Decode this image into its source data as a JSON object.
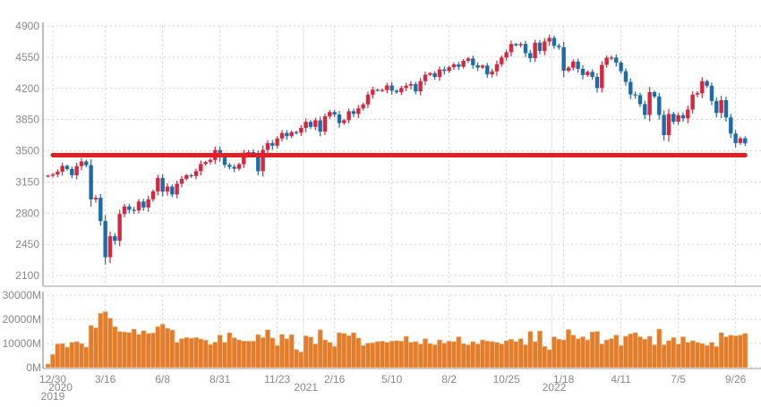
{
  "chart_data": {
    "type": "candlestick",
    "title": "",
    "colors": {
      "up": "#d7263d",
      "down": "#1b6ca8",
      "volume": "#e27d2b",
      "volume_edge": "#f6c9a0",
      "level_line": "#e31e24",
      "grid": "#d4d4d4",
      "axis": "#bdbdbd",
      "text": "#888888"
    },
    "price_axis": {
      "ylim": [
        2100,
        4900
      ],
      "ticks": [
        "2100",
        "2450",
        "2800",
        "3150",
        "3500",
        "3850",
        "4200",
        "4550",
        "4900"
      ]
    },
    "volume_axis": {
      "ylim": [
        0,
        30000
      ],
      "ticks": [
        "0M",
        "10000M",
        "20000M",
        "30000M"
      ]
    },
    "x_ticks": [
      {
        "label": "12/30",
        "week": 1
      },
      {
        "label": "3/16",
        "week": 12
      },
      {
        "label": "6/8",
        "week": 24
      },
      {
        "label": "8/31",
        "week": 36
      },
      {
        "label": "11/23",
        "week": 48
      },
      {
        "label": "2/16",
        "week": 60
      },
      {
        "label": "5/10",
        "week": 72
      },
      {
        "label": "8/2",
        "week": 84
      },
      {
        "label": "10/25",
        "week": 96
      },
      {
        "label": "1/18",
        "week": 108
      },
      {
        "label": "4/11",
        "week": 120
      },
      {
        "label": "7/5",
        "week": 132
      },
      {
        "label": "9/26",
        "week": 144
      }
    ],
    "year_labels": [
      {
        "label": "2019",
        "week": 1
      },
      {
        "label": "2020",
        "week": 2.6
      },
      {
        "label": "2021",
        "week": 54
      },
      {
        "label": "2022",
        "week": 106
      }
    ],
    "year_dividers": [
      53.5,
      105.5
    ],
    "level_line": {
      "value": 3450,
      "from_week": 1,
      "to_week": 146
    },
    "first_week": "2019-12-23",
    "interval": "weekly",
    "close": [
      3221,
      3235,
      3265,
      3330,
      3295,
      3225,
      3328,
      3380,
      3338,
      2954,
      2972,
      2711,
      2305,
      2541,
      2489,
      2790,
      2875,
      2837,
      2831,
      2930,
      2864,
      2955,
      3044,
      3194,
      3041,
      3098,
      3009,
      3130,
      3185,
      3225,
      3216,
      3271,
      3351,
      3373,
      3397,
      3508,
      3427,
      3341,
      3319,
      3298,
      3348,
      3477,
      3484,
      3465,
      3270,
      3510,
      3585,
      3557,
      3638,
      3699,
      3663,
      3709,
      3703,
      3756,
      3824,
      3768,
      3841,
      3714,
      3886,
      3934,
      3906,
      3811,
      3842,
      3943,
      3913,
      3975,
      4020,
      4129,
      4185,
      4180,
      4181,
      4232,
      4174,
      4156,
      4204,
      4230,
      4247,
      4166,
      4281,
      4352,
      4370,
      4327,
      4412,
      4395,
      4437,
      4468,
      4442,
      4509,
      4535,
      4459,
      4433,
      4455,
      4357,
      4391,
      4471,
      4545,
      4605,
      4697,
      4683,
      4698,
      4595,
      4538,
      4712,
      4620,
      4725,
      4766,
      4677,
      4662,
      4398,
      4432,
      4500,
      4419,
      4349,
      4385,
      4329,
      4204,
      4463,
      4543,
      4546,
      4488,
      4392,
      4272,
      4132,
      4123,
      4023,
      3901,
      4158,
      4108,
      3901,
      3675,
      3912,
      3825,
      3899,
      3863,
      3962,
      4130,
      4145,
      4280,
      4228,
      4058,
      3924,
      4067,
      3873,
      3693,
      3586,
      3639,
      3583
    ],
    "first_open": 3215,
    "volume_millions": [
      1500,
      5500,
      9800,
      10000,
      8500,
      10500,
      10800,
      10000,
      8500,
      17500,
      16500,
      22500,
      23200,
      20500,
      17000,
      15000,
      14800,
      14600,
      16000,
      13800,
      15300,
      14200,
      14400,
      17000,
      18000,
      16300,
      15600,
      10500,
      12000,
      12500,
      12200,
      12500,
      11900,
      11400,
      9600,
      10600,
      13500,
      10500,
      14500,
      12400,
      11500,
      11000,
      11000,
      11000,
      13700,
      12500,
      15700,
      12300,
      9200,
      13800,
      12000,
      13700,
      7500,
      6500,
      13200,
      12700,
      9800,
      15700,
      11500,
      10500,
      8800,
      14500,
      14200,
      13300,
      14500,
      12300,
      9200,
      10200,
      10300,
      10800,
      11000,
      10500,
      11000,
      11200,
      11000,
      13000,
      10500,
      10800,
      9800,
      12000,
      10000,
      9500,
      11500,
      10200,
      11000,
      10800,
      12800,
      10000,
      9500,
      10800,
      9800,
      11500,
      11000,
      10800,
      10500,
      9800,
      11200,
      11800,
      10800,
      12000,
      9500,
      15000,
      10800,
      15200,
      8800,
      7500,
      12800,
      11800,
      11500,
      15800,
      13500,
      12000,
      12800,
      11500,
      14800,
      15000,
      9800,
      11500,
      12000,
      13500,
      9200,
      13000,
      14000,
      14500,
      12800,
      11800,
      13000,
      9500,
      16000,
      9500,
      11200,
      12500,
      9800,
      12800,
      10500,
      11200,
      10500,
      10000,
      9200,
      10500,
      8800,
      14500,
      12800,
      13500,
      13200,
      13500,
      14200
    ]
  }
}
